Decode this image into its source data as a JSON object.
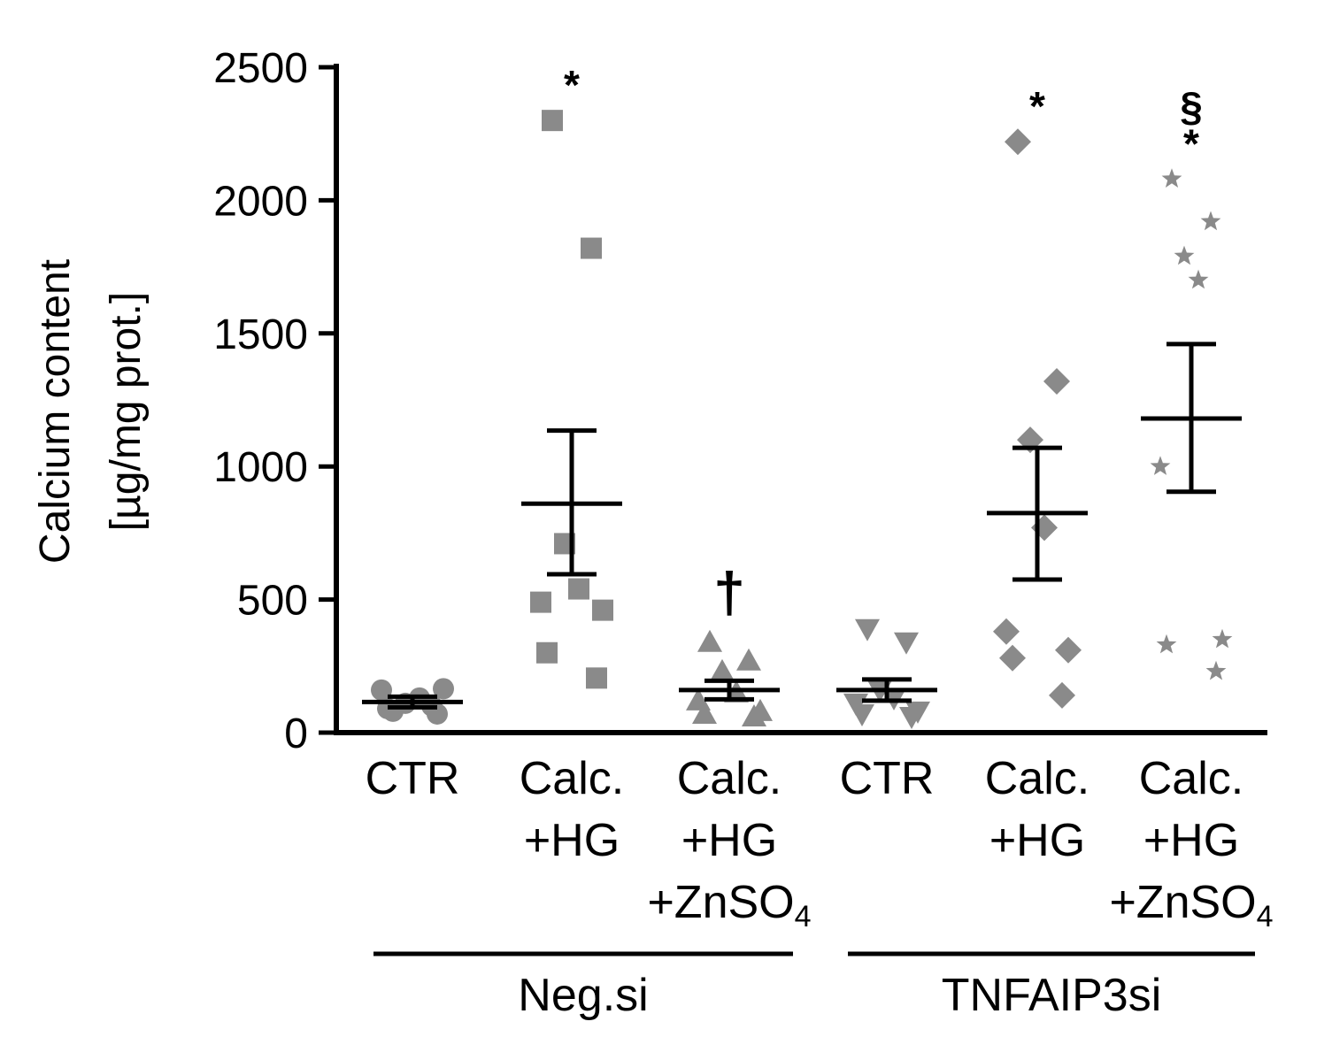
{
  "chart_data": {
    "type": "scatter",
    "ylabel_line1": "Calcium content",
    "ylabel_line2": "[µg/mg  prot.]",
    "ylim": [
      0,
      2500
    ],
    "yticks": [
      0,
      500,
      1000,
      1500,
      2000,
      2500
    ],
    "colors": {
      "points": "#8a8a8a",
      "axis": "#000000",
      "stats": "#000000"
    },
    "categories": [
      {
        "label_lines": [
          "CTR"
        ],
        "marker": "circle",
        "values": [
          80,
          100,
          110,
          130,
          160,
          165,
          90,
          70
        ],
        "mean": 115,
        "sem_low": 95,
        "sem_high": 135,
        "annotations": []
      },
      {
        "label_lines": [
          "Calc.",
          "+HG"
        ],
        "marker": "square",
        "values": [
          2300,
          1820,
          710,
          540,
          490,
          460,
          300,
          205
        ],
        "mean": 860,
        "sem_low": 595,
        "sem_high": 1135,
        "annotations": [
          "*"
        ]
      },
      {
        "label_lines": [
          "Calc.",
          "+HG",
          "+ZnSO"
        ],
        "subscript": "4",
        "marker": "triangle-up",
        "values": [
          340,
          270,
          230,
          150,
          120,
          80,
          70,
          60
        ],
        "mean": 160,
        "sem_low": 125,
        "sem_high": 195,
        "annotations": [
          "†"
        ]
      },
      {
        "label_lines": [
          "CTR"
        ],
        "marker": "triangle-down",
        "values": [
          390,
          340,
          160,
          130,
          110,
          80,
          70,
          60
        ],
        "mean": 160,
        "sem_low": 120,
        "sem_high": 200,
        "annotations": []
      },
      {
        "label_lines": [
          "Calc.",
          "+HG"
        ],
        "marker": "diamond",
        "values": [
          2220,
          1320,
          1100,
          770,
          380,
          310,
          280,
          140
        ],
        "mean": 825,
        "sem_low": 575,
        "sem_high": 1070,
        "annotations": [
          "*"
        ]
      },
      {
        "label_lines": [
          "Calc.",
          "+HG",
          "+ZnSO"
        ],
        "subscript": "4",
        "marker": "star",
        "values": [
          2080,
          1920,
          1790,
          1700,
          1000,
          350,
          330,
          230
        ],
        "mean": 1180,
        "sem_low": 905,
        "sem_high": 1460,
        "annotations": [
          "*",
          "§"
        ]
      }
    ],
    "groups": [
      {
        "label": "Neg.si",
        "from": 0,
        "to": 2
      },
      {
        "label": "TNFAIP3si",
        "from": 3,
        "to": 5
      }
    ]
  }
}
